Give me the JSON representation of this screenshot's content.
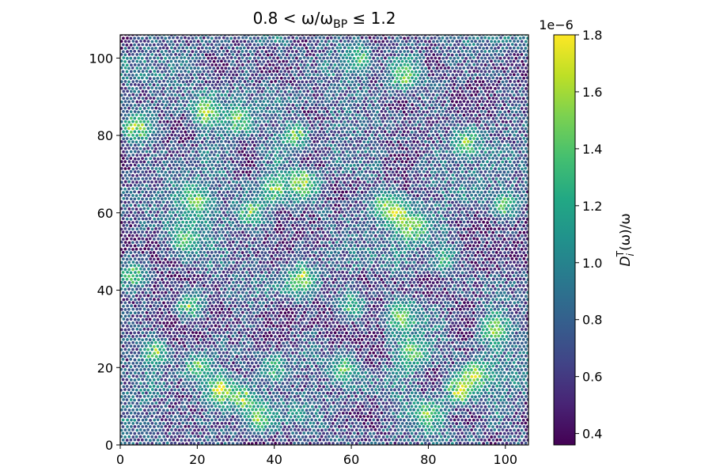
{
  "chart_data": {
    "type": "scatter",
    "title": "0.8 < ω/ω",
    "title_sub": "BP",
    "title_suffix": " ≤ 1.2",
    "xlabel": "",
    "ylabel": "",
    "xlim": [
      0,
      106
    ],
    "ylim": [
      0,
      106
    ],
    "x_ticks": [
      0,
      20,
      40,
      60,
      80,
      100
    ],
    "y_ticks": [
      0,
      20,
      40,
      60,
      80,
      100
    ],
    "grid": false,
    "particle_field": {
      "description_of_marks": "dense packing of equal-size disks colored by per-particle value",
      "lattice_spacing": 1.0,
      "hotspots": [
        {
          "x": 4,
          "y": 82,
          "v": 1.8
        },
        {
          "x": 22,
          "y": 86,
          "v": 1.7
        },
        {
          "x": 31,
          "y": 84,
          "v": 1.6
        },
        {
          "x": 46,
          "y": 80,
          "v": 1.6
        },
        {
          "x": 47,
          "y": 68,
          "v": 1.8
        },
        {
          "x": 40,
          "y": 66,
          "v": 1.7
        },
        {
          "x": 20,
          "y": 63,
          "v": 1.6
        },
        {
          "x": 34,
          "y": 60,
          "v": 1.6
        },
        {
          "x": 72,
          "y": 60,
          "v": 1.8
        },
        {
          "x": 76,
          "y": 56,
          "v": 1.7
        },
        {
          "x": 69,
          "y": 62,
          "v": 1.6
        },
        {
          "x": 47,
          "y": 43,
          "v": 1.8
        },
        {
          "x": 3,
          "y": 44,
          "v": 1.6
        },
        {
          "x": 17,
          "y": 53,
          "v": 1.5
        },
        {
          "x": 18,
          "y": 36,
          "v": 1.6
        },
        {
          "x": 9,
          "y": 24,
          "v": 1.6
        },
        {
          "x": 26,
          "y": 14,
          "v": 1.8
        },
        {
          "x": 32,
          "y": 12,
          "v": 1.7
        },
        {
          "x": 20,
          "y": 20,
          "v": 1.6
        },
        {
          "x": 36,
          "y": 7,
          "v": 1.6
        },
        {
          "x": 40,
          "y": 20,
          "v": 1.5
        },
        {
          "x": 73,
          "y": 33,
          "v": 1.6
        },
        {
          "x": 76,
          "y": 24,
          "v": 1.6
        },
        {
          "x": 88,
          "y": 14,
          "v": 1.8
        },
        {
          "x": 92,
          "y": 18,
          "v": 1.7
        },
        {
          "x": 80,
          "y": 8,
          "v": 1.6
        },
        {
          "x": 97,
          "y": 30,
          "v": 1.6
        },
        {
          "x": 74,
          "y": 95,
          "v": 1.6
        },
        {
          "x": 62,
          "y": 100,
          "v": 1.5
        },
        {
          "x": 90,
          "y": 78,
          "v": 1.6
        },
        {
          "x": 100,
          "y": 62,
          "v": 1.5
        },
        {
          "x": 58,
          "y": 20,
          "v": 1.5
        },
        {
          "x": 60,
          "y": 36,
          "v": 1.5
        },
        {
          "x": 84,
          "y": 48,
          "v": 1.5
        }
      ]
    },
    "colorbar": {
      "colormap": "viridis",
      "min": 0.36,
      "max": 1.8,
      "ticks": [
        0.4,
        0.6,
        0.8,
        1.0,
        1.2,
        1.4,
        1.6,
        1.8
      ],
      "tick_labels": [
        "0.4",
        "0.6",
        "0.8",
        "1.0",
        "1.2",
        "1.4",
        "1.6",
        "1.8"
      ],
      "offset_label": "1e−6",
      "label": "D",
      "label_sub": "i",
      "label_sup": "T",
      "label_suffix": "(ω)/ω"
    }
  }
}
